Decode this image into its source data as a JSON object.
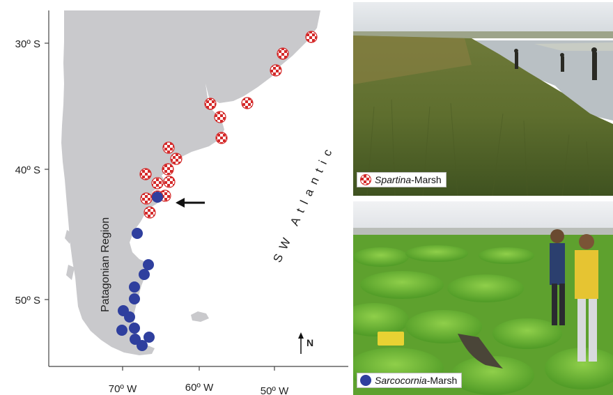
{
  "map": {
    "lat_labels": [
      "30º S",
      "40º S",
      "50º S"
    ],
    "lon_labels": [
      "70º W",
      "60º W",
      "50º W"
    ],
    "ocean_label": "SW Atlantic",
    "region_label": "Patagonian Region",
    "north_label": "N",
    "land_color": "#c9c9cc",
    "spartina_color": "#d42a2a",
    "sarcocornia_color": "#2f3f9e",
    "spartina_sites": 17,
    "sarcocornia_sites": 13
  },
  "legend": {
    "spartina_genus": "Spartina",
    "spartina_suffix": "-Marsh",
    "sarcocornia_genus": "Sarcocornia",
    "sarcocornia_suffix": "-Marsh"
  }
}
